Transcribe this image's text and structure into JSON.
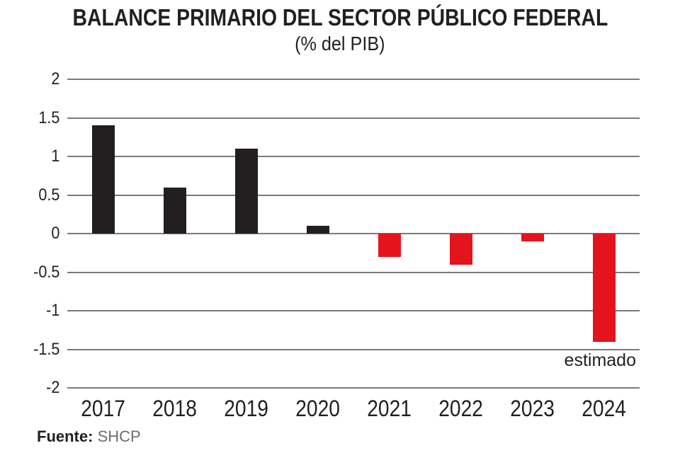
{
  "colors": {
    "positive_bar": "#231f20",
    "negative_bar": "#e3141c",
    "gridline": "#7a7a7a",
    "text": "#231f20",
    "source_text": "#6d6e71"
  },
  "chart_data": {
    "type": "bar",
    "title": "BALANCE PRIMARIO DEL SECTOR PÚBLICO FEDERAL",
    "subtitle": "(% del PIB)",
    "categories": [
      "2017",
      "2018",
      "2019",
      "2020",
      "2021",
      "2022",
      "2023",
      "2024"
    ],
    "values": [
      1.4,
      0.6,
      1.1,
      0.1,
      -0.3,
      -0.4,
      -0.1,
      -1.4
    ],
    "xlabel": "",
    "ylabel": "",
    "ylim": [
      -2,
      2
    ],
    "ytick_labels": [
      "2",
      "1.5",
      "1",
      "0.5",
      "0",
      "-0.5",
      "-1",
      "-1.5",
      "-2"
    ],
    "grid": true,
    "legend_position": "none",
    "annotation": {
      "text": "estimado",
      "category": "2024"
    },
    "source_label": "Fuente:",
    "source_value": "SHCP"
  }
}
